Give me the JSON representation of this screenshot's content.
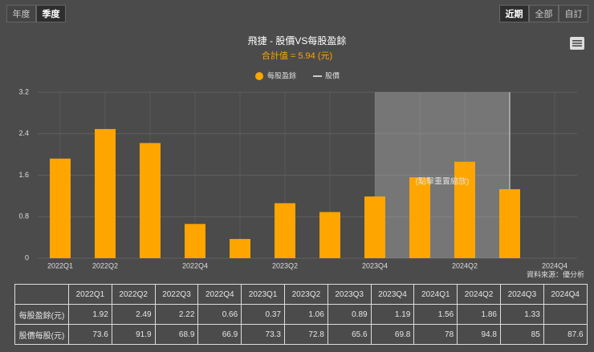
{
  "buttons_left": [
    "年度",
    "季度"
  ],
  "buttons_right": [
    "近期",
    "全部",
    "自訂"
  ],
  "chart_data": {
    "type": "bar",
    "title": "飛捷 - 股價VS每股盈餘",
    "subtitle": "合計值 = 5.94 (元)",
    "categories": [
      "2022Q1",
      "2022Q2",
      null,
      "2022Q4",
      null,
      "2023Q2",
      null,
      "2023Q4",
      null,
      "2024Q2",
      null,
      "2024Q4"
    ],
    "series": [
      {
        "name": "每股盈餘",
        "color": "#ffa500",
        "values": [
          1.92,
          2.49,
          2.22,
          0.66,
          0.37,
          1.06,
          0.89,
          1.19,
          1.56,
          1.86,
          1.33,
          null
        ]
      },
      {
        "name": "股價",
        "color": "#cccccc"
      }
    ],
    "ylim": [
      0,
      3.2
    ],
    "yticks": [
      0,
      0.8,
      1.6,
      2.4,
      3.2
    ],
    "grid": true,
    "annotation": "(點擊重置縮放)",
    "source": "資料來源：優分析"
  },
  "table": {
    "columns": [
      "2022Q1",
      "2022Q2",
      "2022Q3",
      "2022Q4",
      "2023Q1",
      "2023Q2",
      "2023Q3",
      "2023Q4",
      "2024Q1",
      "2024Q2",
      "2024Q3",
      "2024Q4"
    ],
    "rows": [
      {
        "label": "每股盈餘(元)",
        "values": [
          1.92,
          2.49,
          2.22,
          0.66,
          0.37,
          1.06,
          0.89,
          1.19,
          1.56,
          1.86,
          1.33,
          null
        ]
      },
      {
        "label": "股價每股(元)",
        "values": [
          73.6,
          91.9,
          68.9,
          66.9,
          73.3,
          72.8,
          65.6,
          69.8,
          78,
          94.8,
          85,
          87.6
        ]
      }
    ]
  }
}
